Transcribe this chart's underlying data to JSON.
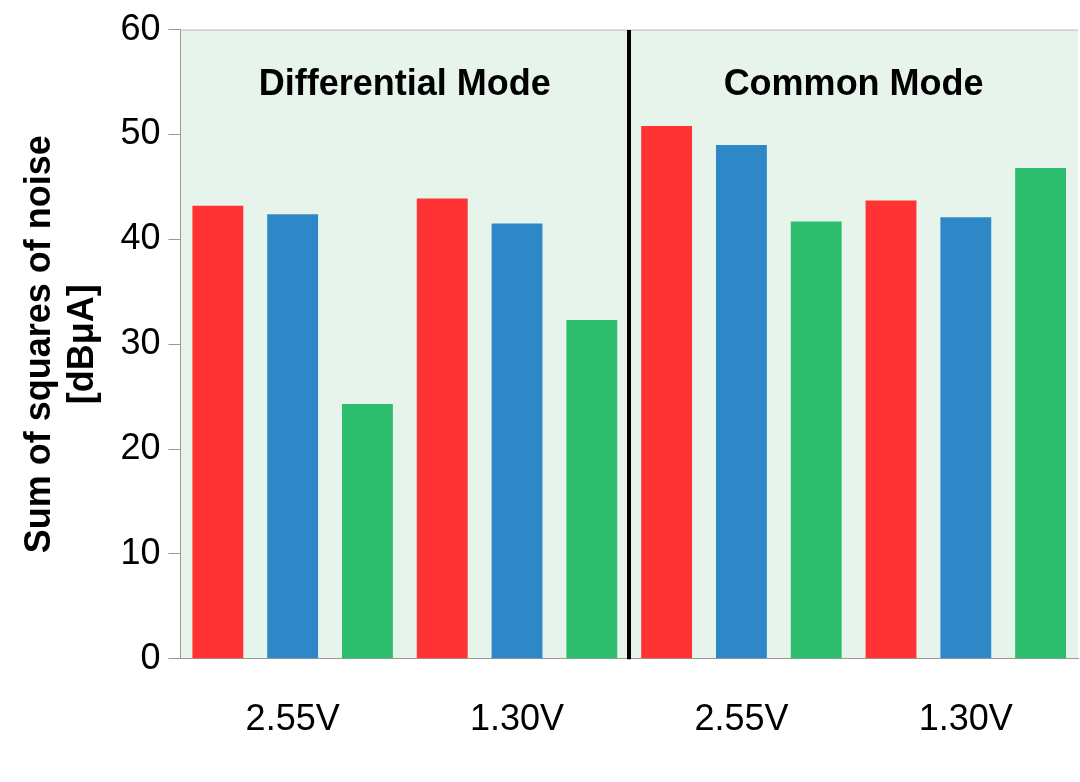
{
  "chart_data": {
    "type": "bar",
    "ylabel": "Sum of squares of noise\n[dBμA]",
    "categories": [
      "2.55V",
      "1.30V",
      "2.55V",
      "1.30V"
    ],
    "series": [
      {
        "color": "#ff3333",
        "values": [
          43.2,
          43.9,
          50.8,
          43.7
        ]
      },
      {
        "color": "#2e88c8",
        "values": [
          42.4,
          41.5,
          49.0,
          42.1
        ]
      },
      {
        "color": "#2dbd6e",
        "values": [
          24.3,
          32.3,
          41.7,
          46.8
        ]
      }
    ],
    "ylim": [
      0,
      60
    ],
    "yticks": [
      0,
      10,
      20,
      30,
      40,
      50,
      60
    ],
    "grid": false,
    "legend": false,
    "annotations": [
      "Differential Mode",
      "Common Mode"
    ]
  }
}
